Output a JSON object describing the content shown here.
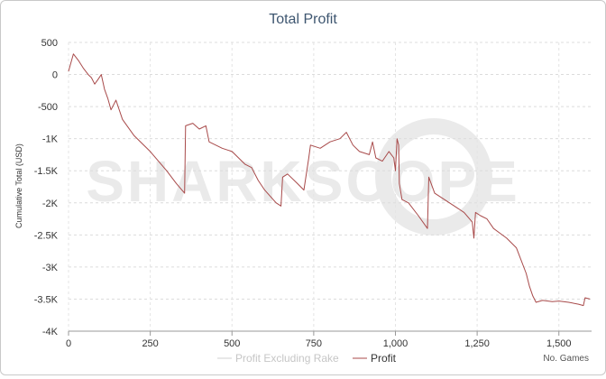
{
  "chart_data": {
    "type": "line",
    "title": "Total Profit",
    "xlabel": "No. Games",
    "ylabel": "Cumulative Total (USD)",
    "xlim": [
      0,
      1600
    ],
    "ylim": [
      -4000,
      500
    ],
    "x_ticks": [
      0,
      250,
      500,
      750,
      1000,
      1250,
      1500
    ],
    "x_tick_labels": [
      "0",
      "250",
      "500",
      "750",
      "1,000",
      "1,250",
      "1,500"
    ],
    "y_ticks": [
      500,
      0,
      -500,
      -1000,
      -1500,
      -2000,
      -2500,
      -3000,
      -3500,
      -4000
    ],
    "y_tick_labels": [
      "500",
      "0",
      "-500",
      "-1K",
      "-1.5K",
      "-2K",
      "-2.5K",
      "-3K",
      "-3.5K",
      "-4K"
    ],
    "grid": true,
    "legend_position": "bottom-center",
    "watermark": "SHARKSCOPE",
    "series": [
      {
        "name": "Profit Excluding Rake",
        "color": "#d9d9d9",
        "visible": false,
        "points": []
      },
      {
        "name": "Profit",
        "color": "#a84a4a",
        "points": [
          [
            0,
            50
          ],
          [
            15,
            320
          ],
          [
            30,
            220
          ],
          [
            45,
            100
          ],
          [
            60,
            0
          ],
          [
            70,
            -50
          ],
          [
            80,
            -150
          ],
          [
            90,
            -80
          ],
          [
            100,
            0
          ],
          [
            110,
            -230
          ],
          [
            120,
            -370
          ],
          [
            130,
            -550
          ],
          [
            145,
            -400
          ],
          [
            165,
            -700
          ],
          [
            200,
            -950
          ],
          [
            250,
            -1200
          ],
          [
            300,
            -1500
          ],
          [
            330,
            -1700
          ],
          [
            355,
            -1850
          ],
          [
            358,
            -800
          ],
          [
            380,
            -760
          ],
          [
            400,
            -850
          ],
          [
            420,
            -800
          ],
          [
            430,
            -1050
          ],
          [
            470,
            -1150
          ],
          [
            500,
            -1200
          ],
          [
            540,
            -1400
          ],
          [
            560,
            -1450
          ],
          [
            580,
            -1650
          ],
          [
            600,
            -1800
          ],
          [
            635,
            -2000
          ],
          [
            650,
            -2050
          ],
          [
            655,
            -1600
          ],
          [
            670,
            -1550
          ],
          [
            700,
            -1700
          ],
          [
            720,
            -1800
          ],
          [
            735,
            -1300
          ],
          [
            740,
            -1100
          ],
          [
            770,
            -1150
          ],
          [
            800,
            -1050
          ],
          [
            830,
            -1000
          ],
          [
            850,
            -900
          ],
          [
            870,
            -1100
          ],
          [
            890,
            -1200
          ],
          [
            920,
            -1250
          ],
          [
            930,
            -1050
          ],
          [
            940,
            -1300
          ],
          [
            960,
            -1350
          ],
          [
            980,
            -1200
          ],
          [
            995,
            -1300
          ],
          [
            1000,
            -1500
          ],
          [
            1005,
            -1000
          ],
          [
            1010,
            -1100
          ],
          [
            1012,
            -1700
          ],
          [
            1020,
            -1950
          ],
          [
            1040,
            -2000
          ],
          [
            1070,
            -2200
          ],
          [
            1098,
            -2400
          ],
          [
            1102,
            -1600
          ],
          [
            1120,
            -1850
          ],
          [
            1150,
            -1950
          ],
          [
            1180,
            -2050
          ],
          [
            1210,
            -2150
          ],
          [
            1235,
            -2300
          ],
          [
            1240,
            -2550
          ],
          [
            1245,
            -2150
          ],
          [
            1260,
            -2200
          ],
          [
            1280,
            -2250
          ],
          [
            1300,
            -2400
          ],
          [
            1340,
            -2550
          ],
          [
            1370,
            -2700
          ],
          [
            1400,
            -3100
          ],
          [
            1410,
            -3300
          ],
          [
            1420,
            -3450
          ],
          [
            1430,
            -3550
          ],
          [
            1450,
            -3520
          ],
          [
            1480,
            -3540
          ],
          [
            1500,
            -3530
          ],
          [
            1530,
            -3550
          ],
          [
            1560,
            -3580
          ],
          [
            1575,
            -3600
          ],
          [
            1580,
            -3480
          ],
          [
            1595,
            -3500
          ]
        ]
      }
    ]
  }
}
